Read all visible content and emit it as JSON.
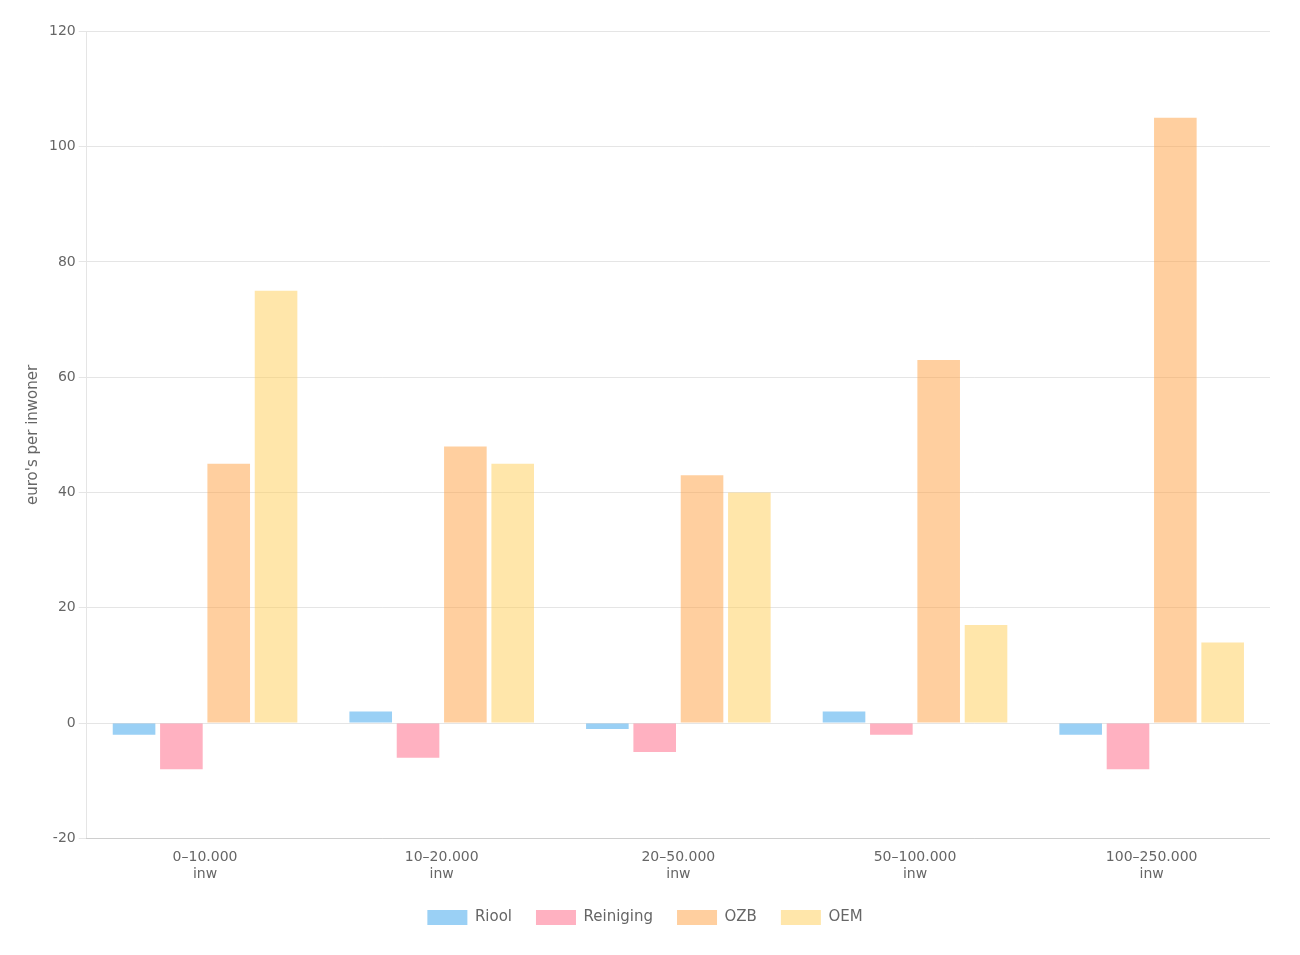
{
  "chart_data": {
    "type": "bar",
    "categories": [
      "0–10.000\ninw",
      "10–20.000\ninw",
      "20–50.000\ninw",
      "50–100.000\ninw",
      "100–250.000\ninw"
    ],
    "series": [
      {
        "name": "Riool",
        "values": [
          -2,
          2,
          -1,
          2,
          -2
        ]
      },
      {
        "name": "Reiniging",
        "values": [
          -8,
          -6,
          -5,
          -2,
          -8
        ]
      },
      {
        "name": "OZB",
        "values": [
          45,
          48,
          43,
          63,
          105
        ]
      },
      {
        "name": "OEM",
        "values": [
          75,
          45,
          40,
          17,
          14
        ]
      }
    ],
    "ylabel": "euro's per inwoner",
    "ylim": [
      -20,
      120
    ],
    "yticks": [
      -20,
      0,
      20,
      40,
      60,
      80,
      100,
      120
    ],
    "grid": true,
    "legend": "bottom"
  }
}
